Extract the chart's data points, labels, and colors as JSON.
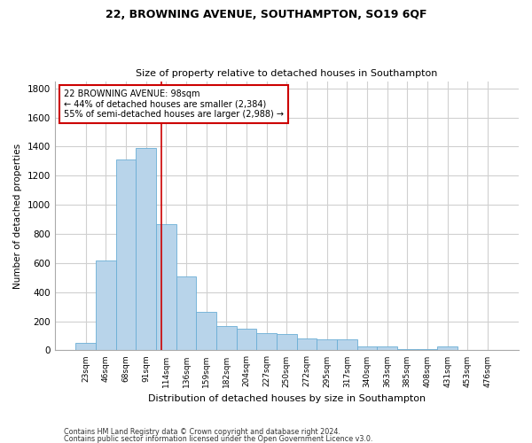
{
  "title1": "22, BROWNING AVENUE, SOUTHAMPTON, SO19 6QF",
  "title2": "Size of property relative to detached houses in Southampton",
  "xlabel": "Distribution of detached houses by size in Southampton",
  "ylabel": "Number of detached properties",
  "categories": [
    "23sqm",
    "46sqm",
    "68sqm",
    "91sqm",
    "114sqm",
    "136sqm",
    "159sqm",
    "182sqm",
    "204sqm",
    "227sqm",
    "250sqm",
    "272sqm",
    "295sqm",
    "317sqm",
    "340sqm",
    "363sqm",
    "385sqm",
    "408sqm",
    "431sqm",
    "453sqm",
    "476sqm"
  ],
  "values": [
    50,
    620,
    1310,
    1390,
    870,
    510,
    265,
    170,
    150,
    120,
    115,
    80,
    75,
    75,
    30,
    30,
    10,
    10,
    30,
    5,
    5
  ],
  "bar_color": "#b8d4ea",
  "bar_edge_color": "#6aaed6",
  "vline_x": 3.78,
  "vline_color": "#cc0000",
  "ylim": [
    0,
    1850
  ],
  "yticks": [
    0,
    200,
    400,
    600,
    800,
    1000,
    1200,
    1400,
    1600,
    1800
  ],
  "annotation_box_text": "22 BROWNING AVENUE: 98sqm\n← 44% of detached houses are smaller (2,384)\n55% of semi-detached houses are larger (2,988) →",
  "annotation_box_color": "#cc0000",
  "footer1": "Contains HM Land Registry data © Crown copyright and database right 2024.",
  "footer2": "Contains public sector information licensed under the Open Government Licence v3.0.",
  "background_color": "#ffffff",
  "grid_color": "#d0d0d0"
}
